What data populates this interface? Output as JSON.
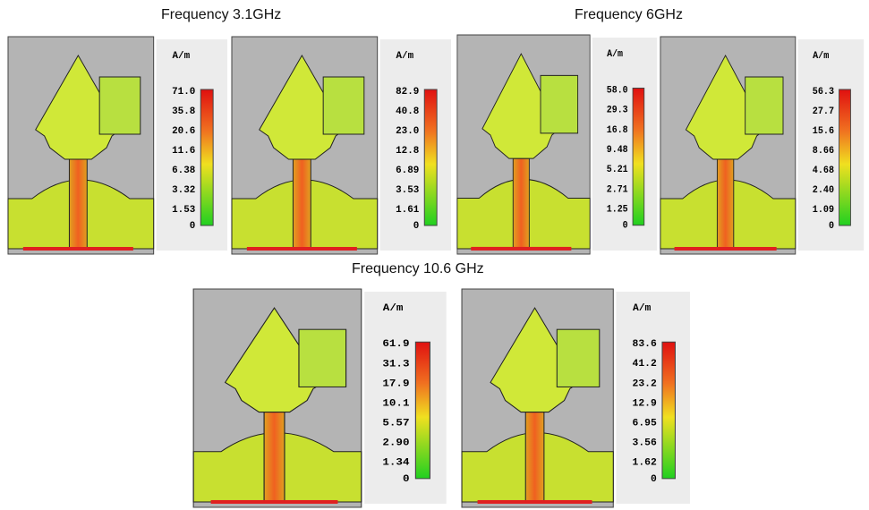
{
  "headings": [
    "Frequency 3.1GHz",
    "Frequency 6GHz",
    "Frequency 10.6 GHz"
  ],
  "panels": [
    {
      "unit": "A/m",
      "ticks": [
        "71.0",
        "35.8",
        "20.6",
        "11.6",
        "6.38",
        "3.32",
        "1.53",
        "0"
      ]
    },
    {
      "unit": "A/m",
      "ticks": [
        "82.9",
        "40.8",
        "23.0",
        "12.8",
        "6.89",
        "3.53",
        "1.61",
        "0"
      ]
    },
    {
      "unit": "A/m",
      "ticks": [
        "58.0",
        "29.3",
        "16.8",
        "9.48",
        "5.21",
        "2.71",
        "1.25",
        "0"
      ]
    },
    {
      "unit": "A/m",
      "ticks": [
        "56.3",
        "27.7",
        "15.6",
        "8.66",
        "4.68",
        "2.40",
        "1.09",
        "0"
      ]
    },
    {
      "unit": "A/m",
      "ticks": [
        "61.9",
        "31.3",
        "17.9",
        "10.1",
        "5.57",
        "2.90",
        "1.34",
        "0"
      ]
    },
    {
      "unit": "A/m",
      "ticks": [
        "83.6",
        "41.2",
        "23.2",
        "12.9",
        "6.95",
        "3.56",
        "1.62",
        "0"
      ]
    }
  ]
}
